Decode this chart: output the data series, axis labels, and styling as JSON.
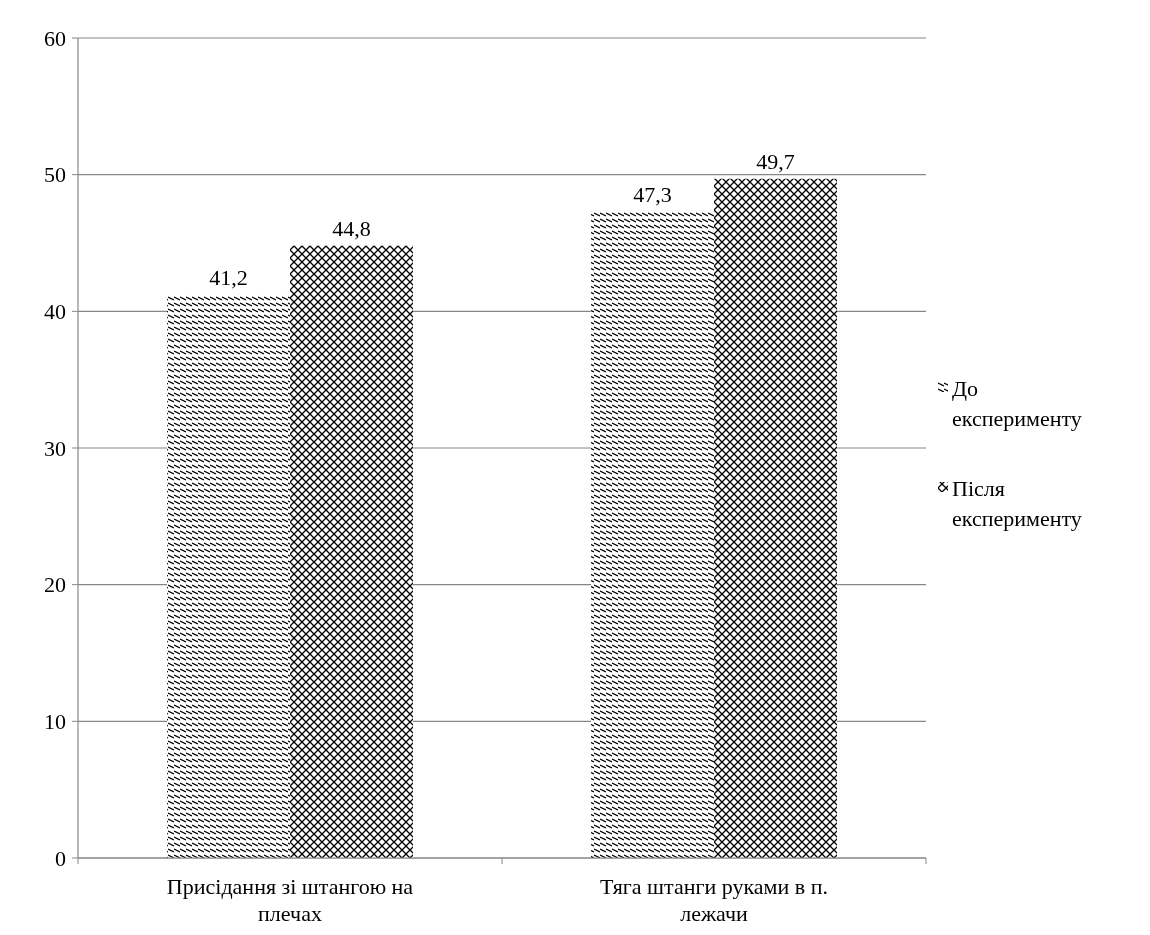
{
  "chart_data": {
    "type": "bar",
    "categories": [
      "Присідання зі штангою на плечах",
      "Тяга штанги руками в п. лежачи"
    ],
    "series": [
      {
        "name": "До експерименту",
        "color": "#000000",
        "values": [
          41.2,
          47.3
        ],
        "value_labels": [
          "41,2",
          "47,3"
        ]
      },
      {
        "name": "Після експерименту",
        "color": "#000000",
        "values": [
          44.8,
          49.7
        ],
        "value_labels": [
          "44,8",
          "49,7"
        ]
      }
    ],
    "ylim": [
      0,
      60
    ],
    "yticks": [
      0,
      10,
      20,
      30,
      40,
      50,
      60
    ],
    "grid": "y",
    "legend": "right"
  }
}
